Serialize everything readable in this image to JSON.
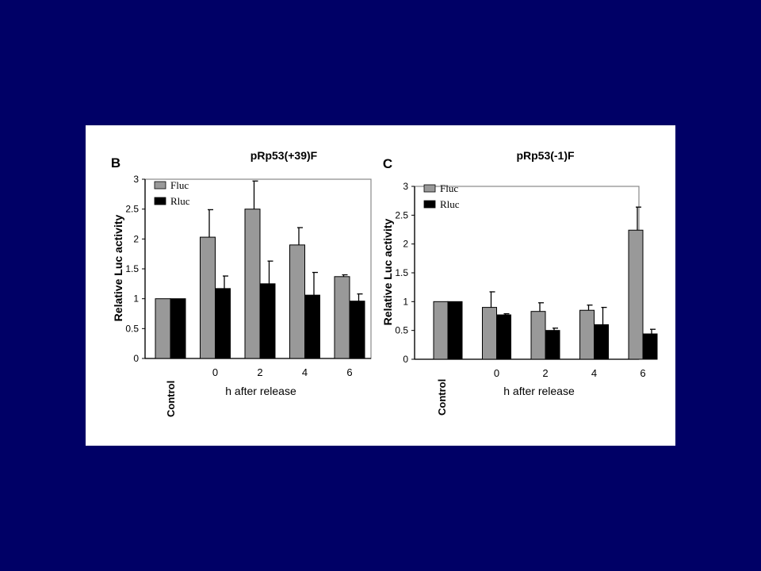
{
  "slide": {
    "background": "#000066",
    "panel_background": "#ffffff"
  },
  "chart_data": [
    {
      "type": "bar",
      "panel_label": "B",
      "title": "pRp53(+39)F",
      "ylabel": "Relative Luc activity",
      "xlabel": "h after release",
      "categories": [
        "Control",
        "0",
        "2",
        "4",
        "6"
      ],
      "ylim": [
        0,
        3
      ],
      "yticks": [
        "0",
        "0.5",
        "1",
        "1.5",
        "2",
        "2.5",
        "3"
      ],
      "grid": false,
      "legend": {
        "position": "top-left",
        "entries": [
          "Fluc",
          "Rluc"
        ]
      },
      "series": [
        {
          "name": "Fluc",
          "color": "#999999",
          "values": [
            1.0,
            2.03,
            2.5,
            1.9,
            1.37
          ],
          "errors": [
            0,
            0.46,
            0.47,
            0.29,
            0.03
          ]
        },
        {
          "name": "Rluc",
          "color": "#000000",
          "values": [
            1.0,
            1.17,
            1.25,
            1.06,
            0.96
          ],
          "errors": [
            0,
            0.21,
            0.38,
            0.38,
            0.12
          ]
        }
      ]
    },
    {
      "type": "bar",
      "panel_label": "C",
      "title": "pRp53(-1)F",
      "ylabel": "Relative Luc activity",
      "xlabel": "h after release",
      "categories": [
        "Control",
        "0",
        "2",
        "4",
        "6"
      ],
      "ylim": [
        0,
        3
      ],
      "yticks": [
        "0",
        "0.5",
        "1",
        "1.5",
        "2",
        "2.5",
        "3"
      ],
      "grid": false,
      "legend": {
        "position": "top-left",
        "entries": [
          "Fluc",
          "Rluc"
        ]
      },
      "series": [
        {
          "name": "Fluc",
          "color": "#999999",
          "values": [
            1.0,
            0.9,
            0.83,
            0.85,
            2.24
          ],
          "errors": [
            0,
            0.27,
            0.15,
            0.09,
            0.4
          ]
        },
        {
          "name": "Rluc",
          "color": "#000000",
          "values": [
            1.0,
            0.77,
            0.5,
            0.6,
            0.44
          ],
          "errors": [
            0,
            0.02,
            0.04,
            0.3,
            0.08
          ]
        }
      ]
    }
  ]
}
